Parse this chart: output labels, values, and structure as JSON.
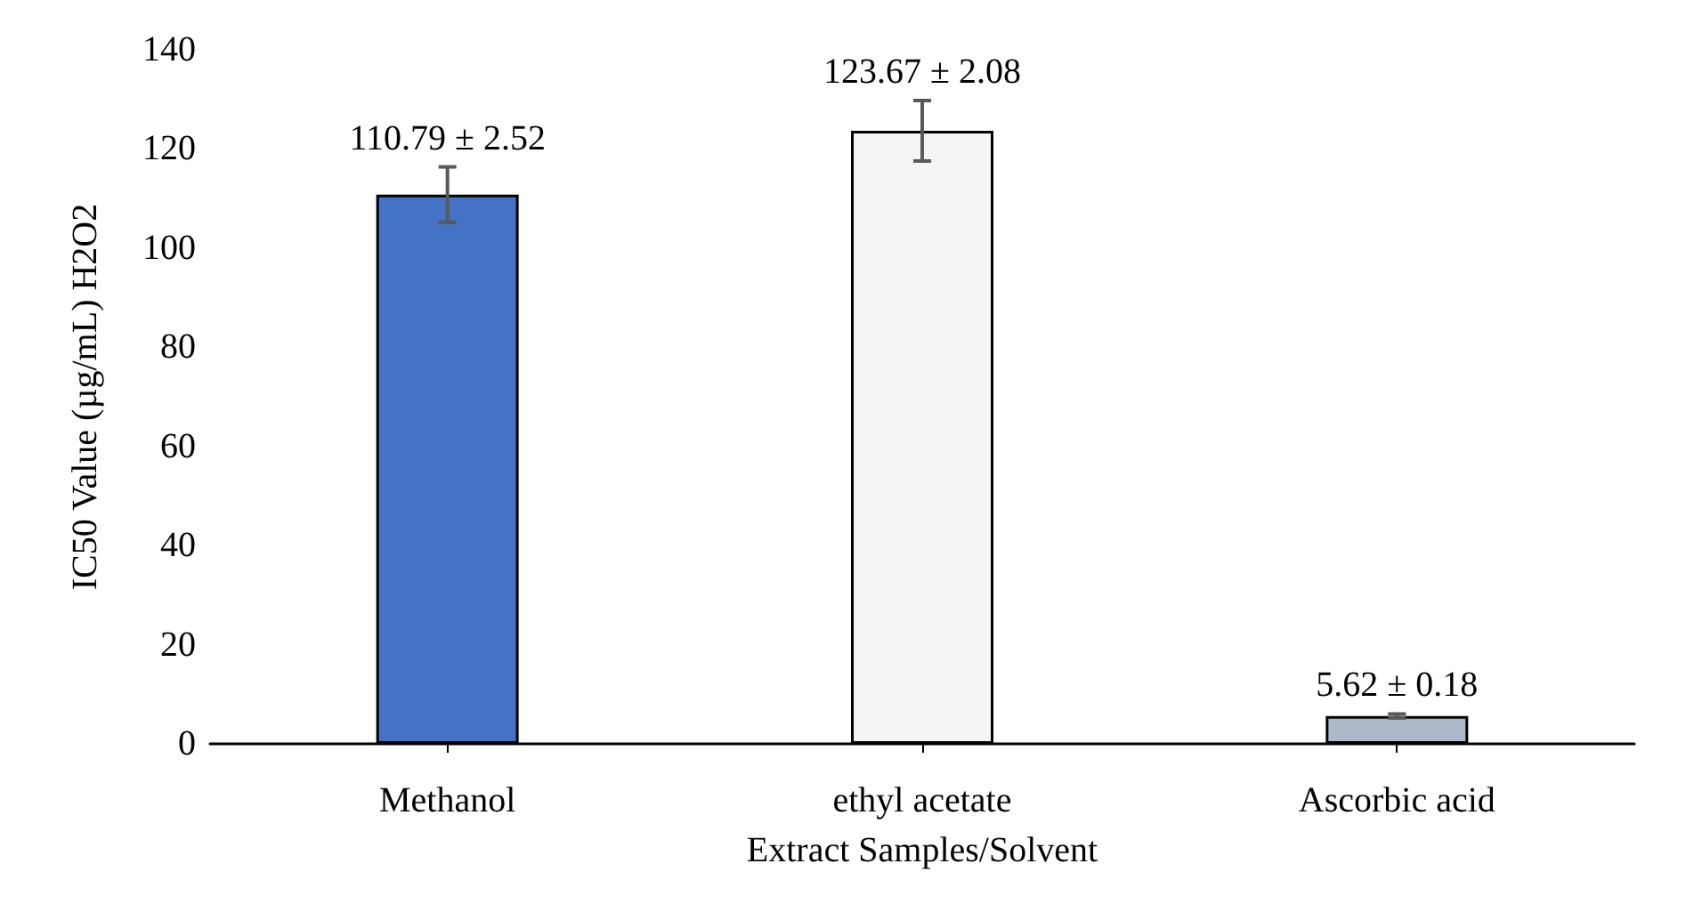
{
  "chart_data": {
    "type": "bar",
    "xlabel": "Extract Samples/Solvent",
    "ylabel": "IC50 Value (µg/mL) H2O2",
    "categories": [
      "Methanol",
      "ethyl acetate",
      "Ascorbic acid"
    ],
    "values": [
      110.79,
      123.67,
      5.62
    ],
    "colors": [
      "#4472c4",
      "#f4f5f7",
      "#adb9ca"
    ],
    "errors": [
      5.6,
      6.1,
      0.4
    ],
    "value_labels": [
      "110.79 ± 2.52",
      "123.67 ± 2.08",
      "5.62 ± 0.18"
    ],
    "ylim": [
      0,
      140
    ],
    "yticks": [
      0,
      20,
      40,
      60,
      80,
      100,
      120,
      140
    ],
    "grid": false
  }
}
